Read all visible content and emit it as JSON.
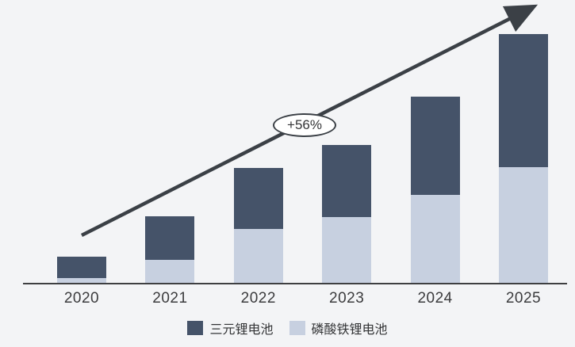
{
  "chart_data": {
    "type": "bar",
    "stacked": true,
    "title": "",
    "xlabel": "",
    "ylabel": "",
    "categories": [
      "2020",
      "2021",
      "2022",
      "2023",
      "2024",
      "2025"
    ],
    "series": [
      {
        "name": "三元锂电池",
        "color": "#455369",
        "values": [
          27,
          55,
          77,
          91,
          124,
          168
        ]
      },
      {
        "name": "磷酸铁锂电池",
        "color": "#c7d0e0",
        "values": [
          7,
          30,
          69,
          84,
          112,
          147
        ]
      }
    ],
    "stack_order_bottom_to_top": [
      "磷酸铁锂电池",
      "三元锂电池"
    ],
    "annotation": {
      "text": "+56%"
    },
    "legend_position": "bottom",
    "axis": {
      "y_axis_hidden": true,
      "ylim": [
        0,
        340
      ],
      "units": "relative",
      "grid": false
    }
  },
  "colors": {
    "background": "#f3f4f6",
    "arrow": "#3b4046",
    "axis": "#3e3f41",
    "text": "#3b3b3d",
    "badge_border": "#3a3f45",
    "badge_fill": "#ffffff"
  }
}
